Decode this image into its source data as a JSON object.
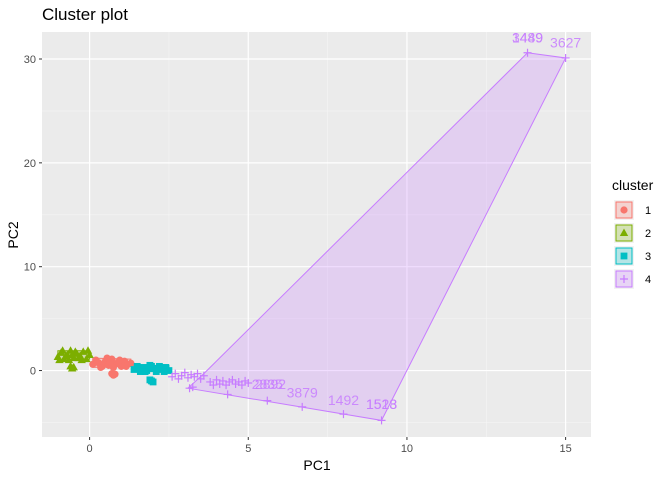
{
  "chart_data": {
    "type": "scatter",
    "title": "Cluster plot",
    "xlabel": "PC1",
    "ylabel": "PC2",
    "xlim": [
      -1.5,
      15.8
    ],
    "ylim": [
      -6.4,
      32.6
    ],
    "x_ticks": [
      0,
      5,
      10,
      15
    ],
    "y_ticks": [
      0,
      10,
      20,
      30
    ],
    "grid": true,
    "legend": {
      "title": "cluster",
      "position": "right",
      "entries": [
        "1",
        "2",
        "3",
        "4"
      ]
    },
    "series": [
      {
        "name": "1",
        "color": "#F8766D",
        "marker": "circle",
        "points": [
          [
            0.1,
            0.6
          ],
          [
            0.2,
            1.0
          ],
          [
            0.3,
            0.7
          ],
          [
            0.4,
            0.4
          ],
          [
            0.5,
            0.9
          ],
          [
            0.6,
            0.5
          ],
          [
            0.7,
            1.1
          ],
          [
            0.8,
            0.6
          ],
          [
            0.9,
            0.8
          ],
          [
            1.0,
            0.4
          ],
          [
            1.1,
            0.9
          ],
          [
            1.2,
            0.6
          ],
          [
            1.3,
            0.7
          ],
          [
            0.35,
            0.3
          ],
          [
            0.55,
            1.2
          ],
          [
            0.75,
            0.3
          ],
          [
            0.95,
            1.0
          ],
          [
            1.15,
            0.4
          ],
          [
            0.25,
            0.8
          ],
          [
            0.65,
            0.8
          ],
          [
            0.7,
            -0.3
          ],
          [
            0.75,
            -0.45
          ],
          [
            0.8,
            -0.35
          ]
        ],
        "hull": [
          [
            0.1,
            0.3
          ],
          [
            1.3,
            0.4
          ],
          [
            1.3,
            1.1
          ],
          [
            0.1,
            1.2
          ]
        ]
      },
      {
        "name": "2",
        "color": "#7CAE00",
        "marker": "triangle",
        "points": [
          [
            -1.0,
            1.3
          ],
          [
            -0.9,
            1.7
          ],
          [
            -0.8,
            1.1
          ],
          [
            -0.7,
            1.5
          ],
          [
            -0.6,
            1.9
          ],
          [
            -0.5,
            1.2
          ],
          [
            -0.4,
            1.6
          ],
          [
            -0.3,
            1.4
          ],
          [
            -0.2,
            1.8
          ],
          [
            -0.1,
            1.1
          ],
          [
            0.0,
            1.5
          ],
          [
            -0.85,
            1.9
          ],
          [
            -0.65,
            1.0
          ],
          [
            -0.45,
            1.8
          ],
          [
            -0.25,
            1.0
          ],
          [
            -0.05,
            1.9
          ],
          [
            -0.95,
            1.0
          ],
          [
            -0.75,
            1.4
          ],
          [
            -0.55,
            1.5
          ],
          [
            -0.35,
            1.2
          ],
          [
            -0.6,
            0.4
          ],
          [
            -0.55,
            0.2
          ],
          [
            -0.5,
            0.3
          ]
        ],
        "hull": [
          [
            -1.0,
            1.0
          ],
          [
            0.0,
            1.1
          ],
          [
            0.0,
            1.9
          ],
          [
            -1.0,
            1.9
          ]
        ]
      },
      {
        "name": "3",
        "color": "#00BFC4",
        "marker": "square",
        "points": [
          [
            1.4,
            0.1
          ],
          [
            1.5,
            0.4
          ],
          [
            1.6,
            -0.1
          ],
          [
            1.7,
            0.3
          ],
          [
            1.8,
            0.0
          ],
          [
            1.9,
            0.5
          ],
          [
            2.0,
            0.2
          ],
          [
            2.1,
            -0.1
          ],
          [
            2.2,
            0.4
          ],
          [
            2.3,
            0.1
          ],
          [
            2.4,
            0.3
          ],
          [
            2.5,
            0.0
          ],
          [
            1.55,
            0.2
          ],
          [
            1.75,
            -0.1
          ],
          [
            1.95,
            0.4
          ],
          [
            2.15,
            0.2
          ],
          [
            2.35,
            -0.1
          ],
          [
            1.9,
            -0.9
          ],
          [
            2.0,
            -1.1
          ],
          [
            1.95,
            -1.0
          ]
        ],
        "hull": [
          [
            1.4,
            -0.1
          ],
          [
            2.5,
            -0.1
          ],
          [
            2.5,
            0.5
          ],
          [
            1.4,
            0.5
          ]
        ]
      },
      {
        "name": "4",
        "color": "#C77CFF",
        "marker": "cross",
        "points": [
          [
            2.6,
            -0.6
          ],
          [
            2.7,
            -0.3
          ],
          [
            2.8,
            -0.8
          ],
          [
            2.9,
            -0.5
          ],
          [
            3.0,
            -0.2
          ],
          [
            3.1,
            -0.7
          ],
          [
            3.2,
            -0.4
          ],
          [
            3.3,
            -0.6
          ],
          [
            3.4,
            -0.3
          ],
          [
            3.5,
            -0.8
          ],
          [
            3.6,
            -0.5
          ],
          [
            3.15,
            -1.7
          ],
          [
            3.25,
            -1.6
          ],
          [
            3.8,
            -1.1
          ],
          [
            3.9,
            -1.4
          ],
          [
            4.0,
            -0.9
          ],
          [
            4.1,
            -1.3
          ],
          [
            4.2,
            -1.0
          ],
          [
            4.3,
            -1.4
          ],
          [
            4.4,
            -1.1
          ],
          [
            4.5,
            -0.9
          ],
          [
            4.6,
            -1.3
          ],
          [
            4.7,
            -1.1
          ],
          [
            4.8,
            -1.4
          ],
          [
            4.9,
            -1.0
          ],
          [
            5.0,
            -1.2
          ],
          [
            4.35,
            -2.3
          ],
          [
            5.6,
            -2.9
          ],
          [
            6.7,
            -3.5
          ],
          [
            8.0,
            -4.2
          ],
          [
            9.2,
            -4.8
          ],
          [
            13.8,
            30.6
          ],
          [
            15.0,
            30.1
          ]
        ],
        "hull": [
          [
            3.1,
            -1.7
          ],
          [
            9.2,
            -4.8
          ],
          [
            15.0,
            30.1
          ],
          [
            13.8,
            30.6
          ],
          [
            3.6,
            -0.3
          ]
        ]
      }
    ],
    "annotations": [
      {
        "text": "3879",
        "x": 6.7,
        "y": -2.6,
        "series": "4"
      },
      {
        "text": "1492",
        "x": 8.0,
        "y": -3.3,
        "series": "4"
      },
      {
        "text": "1513",
        "x": 9.2,
        "y": -3.7,
        "series": "4"
      },
      {
        "text": "1528",
        "x": 9.2,
        "y": -3.7,
        "series": "4"
      },
      {
        "text": "2835",
        "x": 5.6,
        "y": -1.8,
        "series": "4"
      },
      {
        "text": "2892",
        "x": 5.7,
        "y": -1.8,
        "series": "4"
      },
      {
        "text": "1449",
        "x": 13.8,
        "y": 31.6,
        "series": "4"
      },
      {
        "text": "3489",
        "x": 13.8,
        "y": 31.6,
        "series": "4"
      },
      {
        "text": "3627",
        "x": 15.0,
        "y": 31.1,
        "series": "4"
      }
    ]
  }
}
